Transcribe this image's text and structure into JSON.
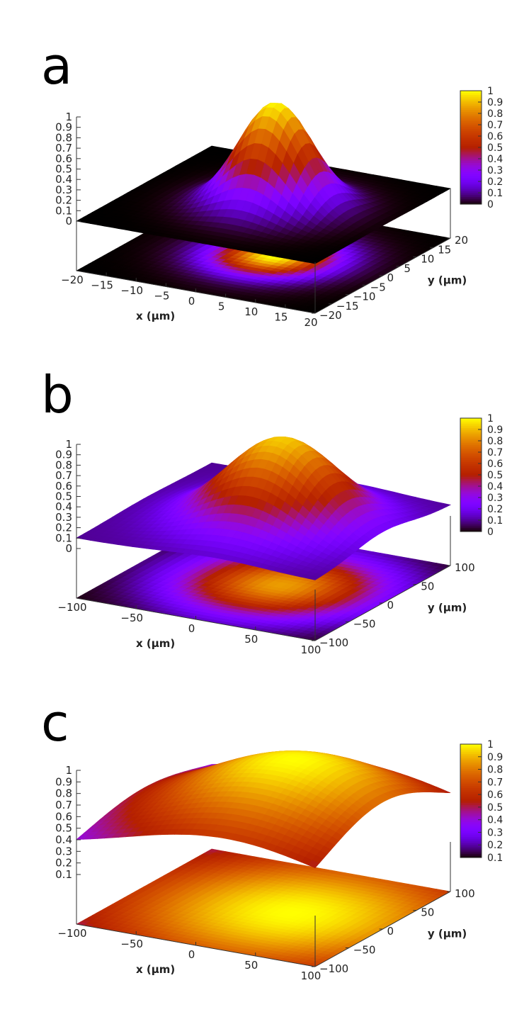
{
  "chart_data": [
    {
      "type": "surface3d",
      "panel": "a",
      "xlabel": "x (µm)",
      "ylabel": "y (µm)",
      "xlim": [
        -20,
        20
      ],
      "ylim": [
        -20,
        20
      ],
      "zlim": [
        0,
        1
      ],
      "x_ticks": [
        "−20",
        "−15",
        "−10",
        "−5",
        "0",
        "5",
        "10",
        "15",
        "20"
      ],
      "y_ticks": [
        "−20",
        "−15",
        "−10",
        "−5",
        "0",
        "5",
        "10",
        "15",
        "20"
      ],
      "z_ticks": [
        "0",
        "0.1",
        "0.2",
        "0.3",
        "0.4",
        "0.5",
        "0.6",
        "0.7",
        "0.8",
        "0.9",
        "1"
      ],
      "colorbar_range": [
        0,
        1
      ],
      "colorbar_ticks": [
        "0",
        "0.1",
        "0.2",
        "0.3",
        "0.4",
        "0.5",
        "0.6",
        "0.7",
        "0.8",
        "0.9",
        "1"
      ],
      "surface": {
        "peak": 1.0,
        "baseline": 0.0,
        "center_x": 2,
        "center_y": 0,
        "width": 5.5
      },
      "projection": {
        "brightness": 1.0,
        "spread": 0.5
      }
    },
    {
      "type": "surface3d",
      "panel": "b",
      "xlabel": "x (µm)",
      "ylabel": "y (µm)",
      "xlim": [
        -100,
        100
      ],
      "ylim": [
        -100,
        100
      ],
      "zlim": [
        0,
        1
      ],
      "x_ticks": [
        "−100",
        "−50",
        "0",
        "50",
        "100"
      ],
      "y_ticks": [
        "−100",
        "−50",
        "0",
        "50",
        "100"
      ],
      "z_ticks": [
        "0",
        "0.1",
        "0.2",
        "0.3",
        "0.4",
        "0.5",
        "0.6",
        "0.7",
        "0.8",
        "0.9",
        "1"
      ],
      "colorbar_range": [
        0,
        1
      ],
      "colorbar_ticks": [
        "0",
        "0.1",
        "0.2",
        "0.3",
        "0.4",
        "0.5",
        "0.6",
        "0.7",
        "0.8",
        "0.9",
        "1"
      ],
      "surface": {
        "peak": 0.93,
        "baseline": 0.1,
        "center_x": 15,
        "center_y": 0,
        "width": 42
      },
      "projection": {
        "brightness": 0.85,
        "spread": 0.7
      }
    },
    {
      "type": "surface3d",
      "panel": "c",
      "xlabel": "x (µm)",
      "ylabel": "y (µm)",
      "xlim": [
        -100,
        100
      ],
      "ylim": [
        -100,
        100
      ],
      "zlim": [
        0.1,
        1
      ],
      "x_ticks": [
        "−100",
        "−50",
        "0",
        "50",
        "100"
      ],
      "y_ticks": [
        "−100",
        "−50",
        "0",
        "50",
        "100"
      ],
      "z_ticks": [
        "0.1",
        "0.2",
        "0.3",
        "0.4",
        "0.5",
        "0.6",
        "0.7",
        "0.8",
        "0.9",
        "1"
      ],
      "colorbar_range": [
        0.1,
        1
      ],
      "colorbar_ticks": [
        "0.1",
        "0.2",
        "0.3",
        "0.4",
        "0.5",
        "0.6",
        "0.7",
        "0.8",
        "0.9",
        "1"
      ],
      "surface": {
        "peak": 1.0,
        "baseline": 0.28,
        "center_x": 25,
        "center_y": 0,
        "width": 85
      },
      "projection": {
        "brightness": 1.0,
        "spread": 1.0
      }
    }
  ]
}
